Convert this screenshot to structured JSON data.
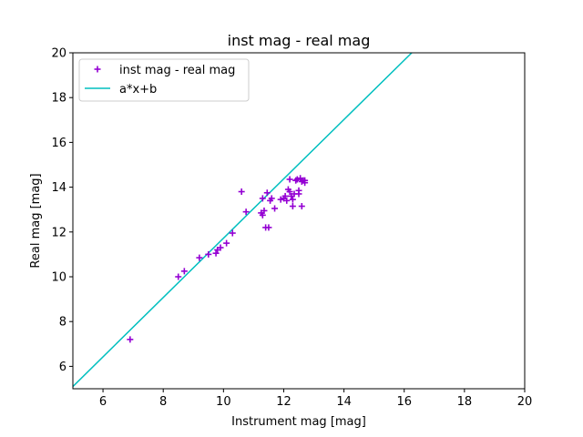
{
  "chart_data": {
    "type": "scatter",
    "title": "inst mag - real mag",
    "xlabel": "Instrument mag [mag]",
    "ylabel": "Real mag [mag]",
    "xlim": [
      5,
      20
    ],
    "ylim": [
      5,
      20
    ],
    "xticks": [
      6,
      8,
      10,
      12,
      14,
      16,
      18,
      20
    ],
    "yticks": [
      6,
      8,
      10,
      12,
      14,
      16,
      18,
      20
    ],
    "grid": false,
    "legend_position": "top-left",
    "series": [
      {
        "name": "inst mag - real mag",
        "kind": "scatter",
        "marker": "plus",
        "color": "#9400d3",
        "points": [
          [
            6.9,
            7.2
          ],
          [
            8.5,
            10.0
          ],
          [
            8.7,
            10.25
          ],
          [
            9.2,
            10.85
          ],
          [
            9.5,
            11.0
          ],
          [
            9.75,
            11.05
          ],
          [
            9.8,
            11.2
          ],
          [
            9.9,
            11.3
          ],
          [
            10.1,
            11.5
          ],
          [
            10.3,
            11.95
          ],
          [
            10.6,
            13.8
          ],
          [
            10.75,
            12.9
          ],
          [
            11.25,
            12.85
          ],
          [
            11.3,
            12.75
          ],
          [
            11.3,
            13.5
          ],
          [
            11.35,
            12.95
          ],
          [
            11.4,
            12.2
          ],
          [
            11.5,
            12.2
          ],
          [
            11.45,
            13.75
          ],
          [
            11.55,
            13.4
          ],
          [
            11.6,
            13.5
          ],
          [
            11.7,
            13.05
          ],
          [
            11.9,
            13.45
          ],
          [
            12.0,
            13.5
          ],
          [
            12.05,
            13.6
          ],
          [
            12.1,
            13.4
          ],
          [
            12.15,
            13.9
          ],
          [
            12.2,
            13.8
          ],
          [
            12.2,
            14.35
          ],
          [
            12.25,
            13.6
          ],
          [
            12.3,
            13.45
          ],
          [
            12.3,
            13.15
          ],
          [
            12.35,
            13.7
          ],
          [
            12.4,
            14.3
          ],
          [
            12.45,
            14.35
          ],
          [
            12.5,
            13.85
          ],
          [
            12.5,
            13.7
          ],
          [
            12.55,
            14.4
          ],
          [
            12.6,
            14.25
          ],
          [
            12.6,
            13.15
          ],
          [
            12.65,
            14.3
          ],
          [
            12.7,
            14.2
          ],
          [
            12.7,
            14.3
          ]
        ]
      },
      {
        "name": "a*x+b",
        "kind": "line",
        "color": "#00bfbf",
        "points": [
          [
            5.0,
            5.1
          ],
          [
            16.25,
            20.0
          ]
        ]
      }
    ]
  }
}
